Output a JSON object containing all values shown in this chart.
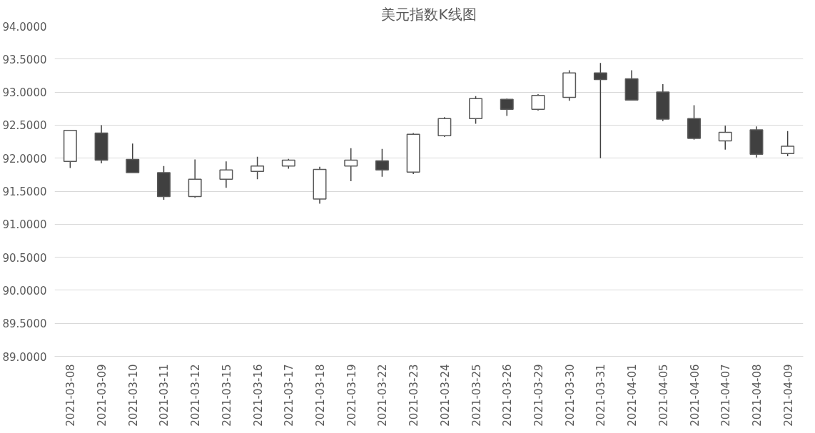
{
  "chart_data": {
    "type": "candlestick",
    "title": "美元指数K线图",
    "categories": [
      "2021-03-08",
      "2021-03-09",
      "2021-03-10",
      "2021-03-11",
      "2021-03-12",
      "2021-03-15",
      "2021-03-16",
      "2021-03-17",
      "2021-03-18",
      "2021-03-19",
      "2021-03-22",
      "2021-03-23",
      "2021-03-24",
      "2021-03-25",
      "2021-03-26",
      "2021-03-29",
      "2021-03-30",
      "2021-03-31",
      "2021-04-01",
      "2021-04-05",
      "2021-04-06",
      "2021-04-07",
      "2021-04-08",
      "2021-04-09"
    ],
    "ohlc": [
      [
        91.95,
        92.43,
        91.85,
        92.42
      ],
      [
        92.38,
        92.5,
        91.92,
        91.97
      ],
      [
        91.98,
        92.22,
        91.78,
        91.78
      ],
      [
        91.78,
        91.88,
        91.37,
        91.42
      ],
      [
        91.42,
        91.98,
        91.4,
        91.68
      ],
      [
        91.68,
        91.95,
        91.55,
        91.82
      ],
      [
        91.8,
        92.02,
        91.68,
        91.88
      ],
      [
        91.88,
        91.99,
        91.84,
        91.97
      ],
      [
        91.38,
        91.87,
        91.31,
        91.83
      ],
      [
        91.88,
        92.15,
        91.65,
        91.97
      ],
      [
        91.96,
        92.14,
        91.72,
        91.82
      ],
      [
        91.79,
        92.38,
        91.76,
        92.36
      ],
      [
        92.34,
        92.62,
        92.32,
        92.6
      ],
      [
        92.6,
        92.94,
        92.52,
        92.9
      ],
      [
        92.89,
        92.9,
        92.64,
        92.74
      ],
      [
        92.74,
        92.97,
        92.72,
        92.95
      ],
      [
        92.92,
        93.33,
        92.87,
        93.29
      ],
      [
        93.29,
        93.44,
        92.0,
        93.19
      ],
      [
        93.2,
        93.33,
        92.88,
        92.88
      ],
      [
        93.0,
        93.12,
        92.56,
        92.59
      ],
      [
        92.6,
        92.8,
        92.28,
        92.3
      ],
      [
        92.26,
        92.49,
        92.13,
        92.39
      ],
      [
        92.43,
        92.48,
        92.01,
        92.06
      ],
      [
        92.07,
        92.41,
        92.03,
        92.18
      ]
    ],
    "colors": [
      "#ffffff",
      "#404040",
      "#404040",
      "#404040",
      "#ffffff",
      "#ffffff",
      "#ffffff",
      "#ffffff",
      "#ffffff",
      "#ffffff",
      "#404040",
      "#ffffff",
      "#ffffff",
      "#ffffff",
      "#404040",
      "#ffffff",
      "#ffffff",
      "#404040",
      "#404040",
      "#404040",
      "#404040",
      "#ffffff",
      "#404040",
      "#ffffff"
    ],
    "ylim": [
      89,
      94
    ],
    "yticks": [
      {
        "value": 89,
        "label": "89.0000"
      },
      {
        "value": 89.5,
        "label": "89.5000"
      },
      {
        "value": 90,
        "label": "90.0000"
      },
      {
        "value": 90.5,
        "label": "90.5000"
      },
      {
        "value": 91,
        "label": "91.0000"
      },
      {
        "value": 91.5,
        "label": "91.5000"
      },
      {
        "value": 92,
        "label": "92.0000"
      },
      {
        "value": 92.5,
        "label": "92.5000"
      },
      {
        "value": 93,
        "label": "93.0000"
      },
      {
        "value": 93.5,
        "label": "93.5000"
      },
      {
        "value": 94,
        "label": "94.0000"
      }
    ],
    "grid": "y"
  }
}
